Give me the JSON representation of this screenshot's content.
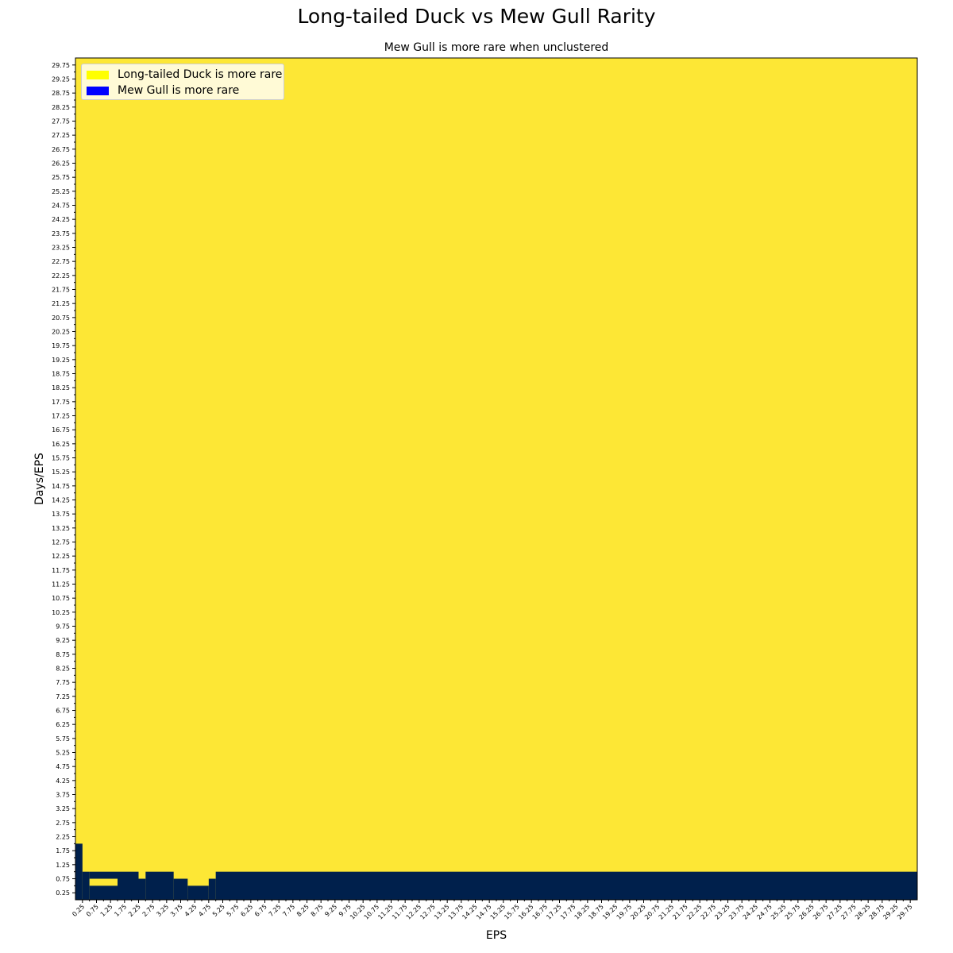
{
  "chart_data": {
    "type": "heatmap",
    "title": "Long-tailed Duck vs Mew Gull Rarity",
    "subtitle": "Mew Gull is more rare when unclustered",
    "xlabel": "EPS",
    "ylabel": "Days/EPS",
    "x_tick_labels": [
      "0.25",
      "0.75",
      "1.25",
      "1.75",
      "2.25",
      "2.75",
      "3.25",
      "3.75",
      "4.25",
      "4.75",
      "5.25",
      "5.75",
      "6.25",
      "6.75",
      "7.25",
      "7.75",
      "8.25",
      "8.75",
      "9.25",
      "9.75",
      "10.25",
      "10.75",
      "11.25",
      "11.75",
      "12.25",
      "12.75",
      "13.25",
      "13.75",
      "14.25",
      "14.75",
      "15.25",
      "15.75",
      "16.25",
      "16.75",
      "17.25",
      "17.75",
      "18.25",
      "18.75",
      "19.25",
      "19.75",
      "20.25",
      "20.75",
      "21.25",
      "21.75",
      "22.25",
      "22.75",
      "23.25",
      "23.75",
      "24.25",
      "24.75",
      "25.25",
      "25.75",
      "26.25",
      "26.75",
      "27.25",
      "27.75",
      "28.25",
      "28.75",
      "29.25",
      "29.75"
    ],
    "y_tick_labels": [
      "0.25",
      "0.75",
      "1.25",
      "1.75",
      "2.25",
      "2.75",
      "3.25",
      "3.75",
      "4.25",
      "4.75",
      "5.25",
      "5.75",
      "6.25",
      "6.75",
      "7.25",
      "7.75",
      "8.25",
      "8.75",
      "9.25",
      "9.75",
      "10.25",
      "10.75",
      "11.25",
      "11.75",
      "12.25",
      "12.75",
      "13.25",
      "13.75",
      "14.25",
      "14.75",
      "15.25",
      "15.75",
      "16.25",
      "16.75",
      "17.25",
      "17.75",
      "18.25",
      "18.75",
      "19.25",
      "19.75",
      "20.25",
      "20.75",
      "21.25",
      "21.75",
      "22.25",
      "22.75",
      "23.25",
      "23.75",
      "24.25",
      "24.75",
      "25.25",
      "25.75",
      "26.25",
      "26.75",
      "27.25",
      "27.75",
      "28.25",
      "28.75",
      "29.25",
      "29.75"
    ],
    "x_range": [
      0.0,
      30.0
    ],
    "y_range": [
      0.0,
      30.0
    ],
    "cell_step": 0.25,
    "default_category": "Long-tailed Duck is more rare",
    "boundary_note": "Mew Gull is more rare for Days/EPS values below the listed boundary at each EPS column.",
    "boundary_segments": [
      {
        "eps_from": 0.0,
        "eps_to": 0.25,
        "mew_gull_rare_below": 2.0
      },
      {
        "eps_from": 0.25,
        "eps_to": 0.5,
        "mew_gull_rare_below": 1.0
      },
      {
        "eps_from": 0.5,
        "eps_to": 1.5,
        "mew_gull_rare_below": 1.0,
        "duck_rare_band": [
          0.5,
          0.75
        ]
      },
      {
        "eps_from": 1.5,
        "eps_to": 2.25,
        "mew_gull_rare_below": 1.0
      },
      {
        "eps_from": 2.25,
        "eps_to": 2.5,
        "mew_gull_rare_below": 0.75
      },
      {
        "eps_from": 2.5,
        "eps_to": 3.5,
        "mew_gull_rare_below": 1.0
      },
      {
        "eps_from": 3.5,
        "eps_to": 4.0,
        "mew_gull_rare_below": 0.75
      },
      {
        "eps_from": 4.0,
        "eps_to": 4.75,
        "mew_gull_rare_below": 0.5
      },
      {
        "eps_from": 4.75,
        "eps_to": 5.0,
        "mew_gull_rare_below": 0.75
      },
      {
        "eps_from": 5.0,
        "eps_to": 30.0,
        "mew_gull_rare_below": 1.0
      }
    ],
    "colors": {
      "duck_rare": "#fde735",
      "gull_rare": "#00204c"
    },
    "legend": {
      "placement": "upper-left",
      "entries": [
        {
          "label": "Long-tailed Duck is more rare",
          "color": "#ffff00"
        },
        {
          "label": "Mew Gull is more rare",
          "color": "#0000ff"
        }
      ]
    },
    "grid": false
  }
}
